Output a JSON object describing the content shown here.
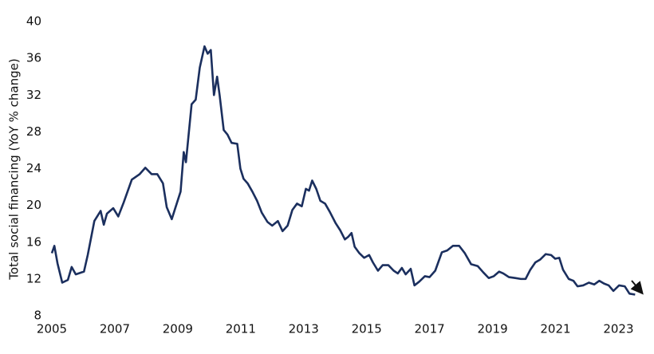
{
  "chart_data": {
    "type": "line",
    "y_label": "Total social financing (YoY % change)",
    "x": [
      2005.0,
      2005.08,
      2005.18,
      2005.33,
      2005.51,
      2005.63,
      2005.76,
      2006.02,
      2006.14,
      2006.35,
      2006.55,
      2006.65,
      2006.75,
      2006.95,
      2007.11,
      2007.28,
      2007.54,
      2007.79,
      2007.97,
      2008.17,
      2008.35,
      2008.53,
      2008.65,
      2008.81,
      2008.93,
      2009.09,
      2009.19,
      2009.26,
      2009.44,
      2009.57,
      2009.7,
      2009.85,
      2009.95,
      2010.05,
      2010.15,
      2010.25,
      2010.33,
      2010.46,
      2010.58,
      2010.71,
      2010.89,
      2010.99,
      2011.09,
      2011.22,
      2011.37,
      2011.52,
      2011.67,
      2011.85,
      2012.0,
      2012.18,
      2012.33,
      2012.49,
      2012.64,
      2012.79,
      2012.94,
      2013.07,
      2013.17,
      2013.27,
      2013.4,
      2013.53,
      2013.68,
      2013.83,
      2014.01,
      2014.16,
      2014.31,
      2014.42,
      2014.52,
      2014.62,
      2014.77,
      2014.92,
      2015.08,
      2015.2,
      2015.36,
      2015.51,
      2015.69,
      2015.86,
      2015.99,
      2016.12,
      2016.24,
      2016.4,
      2016.52,
      2016.67,
      2016.85,
      2017.0,
      2017.18,
      2017.39,
      2017.56,
      2017.74,
      2017.94,
      2018.12,
      2018.32,
      2018.53,
      2018.71,
      2018.88,
      2019.04,
      2019.21,
      2019.34,
      2019.52,
      2019.72,
      2019.9,
      2020.05,
      2020.2,
      2020.36,
      2020.51,
      2020.69,
      2020.86,
      2020.99,
      2021.12,
      2021.24,
      2021.42,
      2021.57,
      2021.7,
      2021.88,
      2022.06,
      2022.23,
      2022.39,
      2022.54,
      2022.69,
      2022.84,
      2023.02,
      2023.2,
      2023.35,
      2023.53
    ],
    "series": [
      {
        "color": "#1b2f5e",
        "values": [
          14.8,
          15.6,
          13.7,
          11.6,
          11.9,
          13.3,
          12.5,
          12.8,
          14.6,
          18.3,
          19.4,
          17.9,
          19.1,
          19.7,
          18.8,
          20.3,
          22.8,
          23.4,
          24.1,
          23.4,
          23.4,
          22.4,
          19.8,
          18.5,
          19.8,
          21.5,
          25.8,
          24.7,
          31.0,
          31.5,
          35.0,
          37.3,
          36.5,
          36.9,
          32.0,
          34.0,
          32.0,
          28.2,
          27.7,
          26.8,
          26.7,
          24.0,
          22.9,
          22.4,
          21.5,
          20.5,
          19.2,
          18.2,
          17.8,
          18.3,
          17.2,
          17.8,
          19.5,
          20.2,
          19.9,
          21.8,
          21.6,
          22.7,
          21.8,
          20.5,
          20.2,
          19.3,
          18.1,
          17.3,
          16.3,
          16.6,
          17.0,
          15.5,
          14.8,
          14.3,
          14.6,
          13.8,
          12.9,
          13.5,
          13.5,
          12.9,
          12.6,
          13.2,
          12.5,
          13.1,
          11.3,
          11.7,
          12.3,
          12.2,
          12.9,
          14.9,
          15.1,
          15.6,
          15.6,
          14.8,
          13.6,
          13.4,
          12.7,
          12.1,
          12.3,
          12.8,
          12.6,
          12.2,
          12.1,
          12.0,
          12.0,
          13.0,
          13.8,
          14.1,
          14.7,
          14.6,
          14.2,
          14.3,
          13.0,
          12.0,
          11.8,
          11.2,
          11.3,
          11.6,
          11.4,
          11.8,
          11.5,
          11.3,
          10.7,
          11.3,
          11.2,
          10.4,
          10.3
        ]
      }
    ],
    "xlim": [
      2005,
      2023.8
    ],
    "xticks": [
      2005,
      2007,
      2009,
      2011,
      2013,
      2015,
      2017,
      2019,
      2021,
      2023
    ],
    "ylim": [
      8,
      40
    ],
    "yticks": [
      8,
      12,
      16,
      20,
      24,
      28,
      32,
      36,
      40
    ],
    "grid": false
  }
}
